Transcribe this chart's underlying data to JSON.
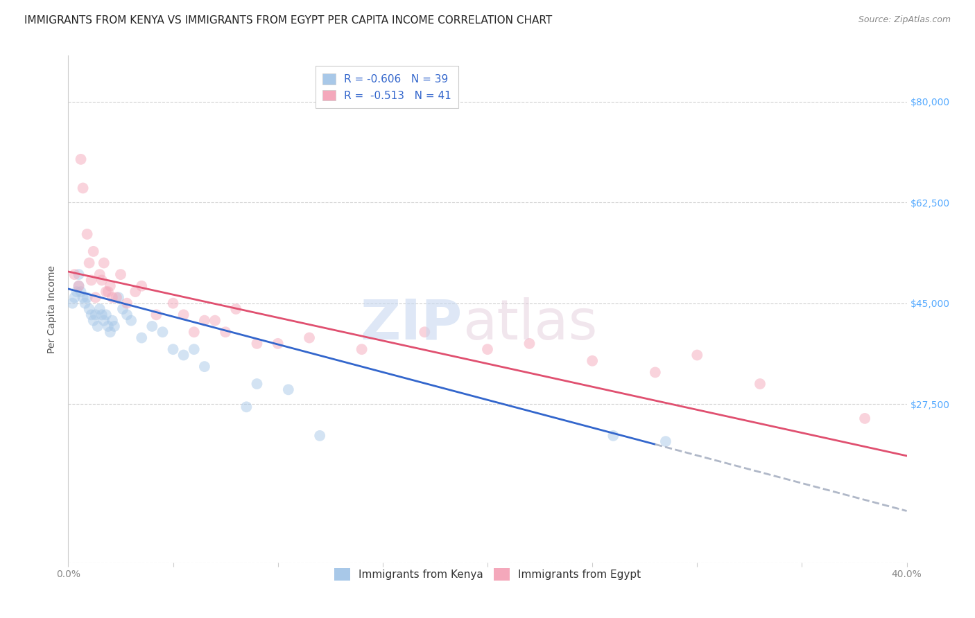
{
  "title": "IMMIGRANTS FROM KENYA VS IMMIGRANTS FROM EGYPT PER CAPITA INCOME CORRELATION CHART",
  "source": "Source: ZipAtlas.com",
  "ylabel": "Per Capita Income",
  "yticks": [
    0,
    27500,
    45000,
    62500,
    80000
  ],
  "ytick_labels": [
    "",
    "$27,500",
    "$45,000",
    "$62,500",
    "$80,000"
  ],
  "xlim": [
    0.0,
    40.0
  ],
  "ylim": [
    0,
    88000
  ],
  "legend_r1": "R = -0.606",
  "legend_n1": "N = 39",
  "legend_r2": "R =  -0.513",
  "legend_n2": "N = 41",
  "kenya_color": "#a8c8e8",
  "egypt_color": "#f4a8bb",
  "kenya_line_color": "#3366cc",
  "egypt_line_color": "#e05070",
  "kenya_x": [
    0.2,
    0.3,
    0.4,
    0.5,
    0.5,
    0.6,
    0.7,
    0.8,
    0.9,
    1.0,
    1.1,
    1.2,
    1.3,
    1.4,
    1.5,
    1.6,
    1.7,
    1.8,
    1.9,
    2.0,
    2.1,
    2.2,
    2.4,
    2.6,
    2.8,
    3.0,
    3.5,
    4.0,
    4.5,
    5.0,
    5.5,
    6.0,
    6.5,
    8.5,
    9.0,
    10.5,
    12.0,
    26.0,
    28.5
  ],
  "kenya_y": [
    45000,
    46000,
    47000,
    48000,
    50000,
    47000,
    46000,
    45000,
    46000,
    44000,
    43000,
    42000,
    43000,
    41000,
    44000,
    43000,
    42000,
    43000,
    41000,
    40000,
    42000,
    41000,
    46000,
    44000,
    43000,
    42000,
    39000,
    41000,
    40000,
    37000,
    36000,
    37000,
    34000,
    27000,
    31000,
    30000,
    22000,
    22000,
    21000
  ],
  "egypt_x": [
    0.3,
    0.5,
    0.6,
    0.7,
    0.9,
    1.0,
    1.1,
    1.2,
    1.3,
    1.5,
    1.6,
    1.7,
    1.8,
    1.9,
    2.0,
    2.1,
    2.3,
    2.5,
    2.8,
    3.2,
    3.5,
    4.2,
    5.0,
    5.5,
    6.0,
    6.5,
    7.0,
    7.5,
    8.0,
    9.0,
    10.0,
    11.5,
    14.0,
    17.0,
    20.0,
    22.0,
    25.0,
    28.0,
    30.0,
    33.0,
    38.0
  ],
  "egypt_y": [
    50000,
    48000,
    70000,
    65000,
    57000,
    52000,
    49000,
    54000,
    46000,
    50000,
    49000,
    52000,
    47000,
    47000,
    48000,
    46000,
    46000,
    50000,
    45000,
    47000,
    48000,
    43000,
    45000,
    43000,
    40000,
    42000,
    42000,
    40000,
    44000,
    38000,
    38000,
    39000,
    37000,
    40000,
    37000,
    38000,
    35000,
    33000,
    36000,
    31000,
    25000
  ],
  "background_color": "#ffffff",
  "grid_color": "#d0d0d0",
  "title_fontsize": 11,
  "axis_label_fontsize": 10,
  "tick_fontsize": 10,
  "legend_fontsize": 11,
  "marker_size": 130,
  "marker_alpha": 0.5,
  "line_width": 2.0,
  "kenya_line_x0": 0.0,
  "kenya_line_y0": 47500,
  "kenya_line_x1": 28.0,
  "kenya_line_y1": 20500,
  "egypt_line_x0": 0.0,
  "egypt_line_y0": 50500,
  "egypt_line_x1": 40.0,
  "egypt_line_y1": 18500
}
